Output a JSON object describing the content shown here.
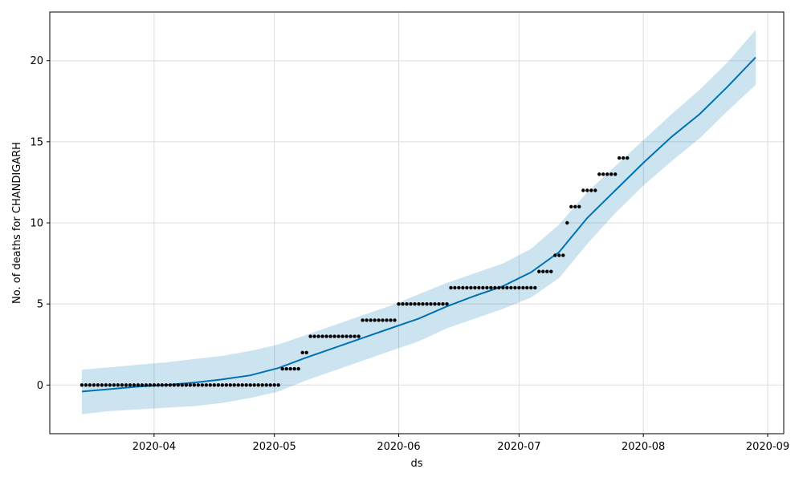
{
  "chart_data": {
    "type": "line",
    "title": "",
    "xlabel": "ds",
    "ylabel": "No. of deaths for CHANDIGARH",
    "x_range": [
      "2020-03-06",
      "2020-09-05"
    ],
    "ylim": [
      -3,
      23
    ],
    "grid": true,
    "x_ticks": [
      {
        "date": "2020-04-01",
        "label": "2020-04"
      },
      {
        "date": "2020-05-01",
        "label": "2020-05"
      },
      {
        "date": "2020-06-01",
        "label": "2020-06"
      },
      {
        "date": "2020-07-01",
        "label": "2020-07"
      },
      {
        "date": "2020-08-01",
        "label": "2020-08"
      },
      {
        "date": "2020-09-01",
        "label": "2020-09"
      }
    ],
    "y_ticks": [
      0,
      5,
      10,
      15,
      20
    ],
    "colors": {
      "forecast_line": "#0072B2",
      "uncertainty_band": "#0072B2",
      "observed_points": "#000000",
      "grid": "#dddddd"
    },
    "observed": {
      "start_date": "2020-03-14",
      "end_date": "2020-07-29",
      "segments": [
        {
          "from": "2020-03-14",
          "to": "2020-05-02",
          "value": 0
        },
        {
          "from": "2020-05-03",
          "to": "2020-05-07",
          "value": 1
        },
        {
          "from": "2020-05-08",
          "to": "2020-05-09",
          "value": 2
        },
        {
          "from": "2020-05-10",
          "to": "2020-05-22",
          "value": 3
        },
        {
          "from": "2020-05-23",
          "to": "2020-05-31",
          "value": 4
        },
        {
          "from": "2020-06-01",
          "to": "2020-06-13",
          "value": 5
        },
        {
          "from": "2020-06-14",
          "to": "2020-07-05",
          "value": 6
        },
        {
          "from": "2020-07-06",
          "to": "2020-07-09",
          "value": 7
        },
        {
          "from": "2020-07-10",
          "to": "2020-07-12",
          "value": 8
        },
        {
          "from": "2020-07-13",
          "to": "2020-07-13",
          "value": 10
        },
        {
          "from": "2020-07-14",
          "to": "2020-07-16",
          "value": 11
        },
        {
          "from": "2020-07-17",
          "to": "2020-07-20",
          "value": 12
        },
        {
          "from": "2020-07-21",
          "to": "2020-07-25",
          "value": 13
        },
        {
          "from": "2020-07-26",
          "to": "2020-07-28",
          "value": 14
        }
      ]
    },
    "forecast": {
      "dates": [
        "2020-03-14",
        "2020-03-21",
        "2020-03-28",
        "2020-04-04",
        "2020-04-11",
        "2020-04-18",
        "2020-04-25",
        "2020-05-02",
        "2020-05-09",
        "2020-05-16",
        "2020-05-23",
        "2020-05-30",
        "2020-06-06",
        "2020-06-13",
        "2020-06-20",
        "2020-06-27",
        "2020-07-04",
        "2020-07-11",
        "2020-07-18",
        "2020-07-25",
        "2020-08-01",
        "2020-08-08",
        "2020-08-15",
        "2020-08-22",
        "2020-08-29"
      ],
      "yhat": [
        -0.4,
        -0.25,
        -0.1,
        0.0,
        0.15,
        0.35,
        0.6,
        1.05,
        1.7,
        2.3,
        2.9,
        3.5,
        4.1,
        4.85,
        5.5,
        6.1,
        6.95,
        8.2,
        10.3,
        12.0,
        13.7,
        15.3,
        16.7,
        18.4,
        20.2
      ],
      "yhat_lower": [
        -1.8,
        -1.6,
        -1.5,
        -1.4,
        -1.3,
        -1.1,
        -0.8,
        -0.4,
        0.3,
        0.9,
        1.5,
        2.1,
        2.7,
        3.5,
        4.1,
        4.7,
        5.4,
        6.6,
        8.7,
        10.6,
        12.3,
        13.8,
        15.2,
        16.9,
        18.5
      ],
      "yhat_upper": [
        0.95,
        1.1,
        1.25,
        1.4,
        1.6,
        1.8,
        2.1,
        2.5,
        3.1,
        3.7,
        4.3,
        4.9,
        5.6,
        6.3,
        6.9,
        7.5,
        8.4,
        9.9,
        11.9,
        13.5,
        15.1,
        16.7,
        18.2,
        19.9,
        21.9
      ]
    }
  }
}
